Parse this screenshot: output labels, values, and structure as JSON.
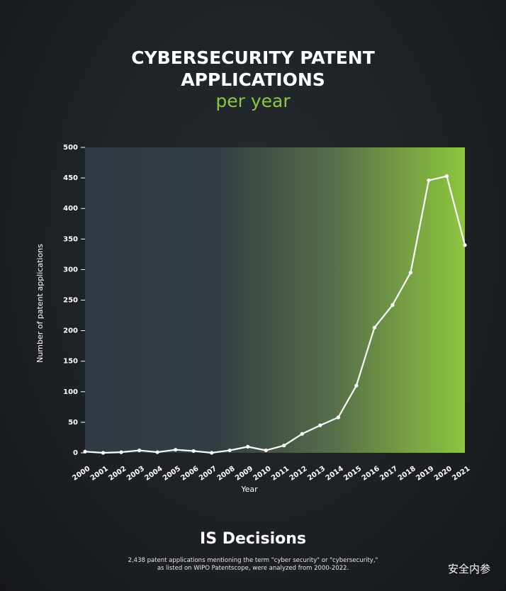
{
  "chart_data": {
    "type": "line",
    "title": "CYBERSECURITY PATENT APPLICATIONS",
    "subtitle": "per year",
    "x_label": "Year",
    "y_label": "Number of patent applications",
    "categories": [
      "2000",
      "2001",
      "2002",
      "2003",
      "2004",
      "2005",
      "2006",
      "2007",
      "2008",
      "2009",
      "2010",
      "2011",
      "2012",
      "2013",
      "2014",
      "2015",
      "2016",
      "2017",
      "2018",
      "2019",
      "2020",
      "2021"
    ],
    "series": [
      {
        "name": "Patent applications",
        "color": "#ffffff",
        "values": [
          2,
          0,
          1,
          4,
          1,
          5,
          3,
          0,
          4,
          10,
          4,
          12,
          31,
          45,
          58,
          110,
          205,
          242,
          295,
          446,
          453,
          340
        ]
      }
    ],
    "ylim": [
      0,
      500
    ],
    "yticks": [
      0,
      50,
      100,
      150,
      200,
      250,
      300,
      350,
      400,
      450,
      500
    ],
    "grid": true
  },
  "brand": "IS Decisions",
  "footnote": [
    "2,438 patent applications mentioning the term \"cyber security\" or \"cybersecurity,\"",
    "as listed on WIPO Patentscope, were analyzed from 2000-2022."
  ],
  "watermark": "安全内参"
}
